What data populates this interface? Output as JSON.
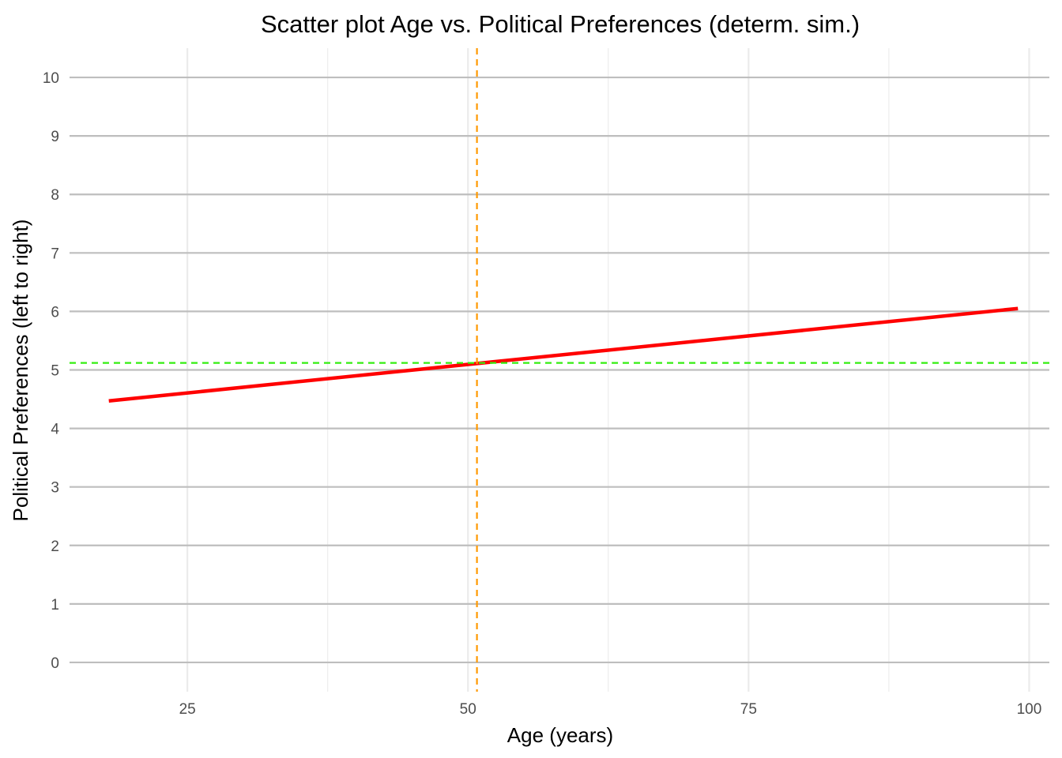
{
  "chart_data": {
    "type": "scatter",
    "title": "Scatter plot Age vs. Political Preferences (determ. sim.)",
    "xlabel": "Age (years)",
    "ylabel": "Political Preferences (left to right)",
    "xlim": [
      14.5,
      101.8
    ],
    "ylim": [
      -0.5,
      10.5
    ],
    "x_ticks": [
      25,
      50,
      75,
      100
    ],
    "x_minor_ticks": [
      37.5,
      62.5,
      87.5
    ],
    "y_ticks": [
      0,
      1,
      2,
      3,
      4,
      5,
      6,
      7,
      8,
      9,
      10
    ],
    "x_tick_labels": [
      "25",
      "50",
      "75",
      "100"
    ],
    "y_tick_labels": [
      "0",
      "1",
      "2",
      "3",
      "4",
      "5",
      "6",
      "7",
      "8",
      "9",
      "10"
    ],
    "grid": true,
    "series": [
      {
        "kind": "regression-line",
        "color": "#ff0000",
        "x": [
          18,
          99
        ],
        "y": [
          4.47,
          6.05
        ]
      },
      {
        "kind": "mean-line-horizontal",
        "color": "#33ee11",
        "y": 5.12
      },
      {
        "kind": "mean-line-vertical",
        "color": "#ff9900",
        "x": 50.8
      }
    ]
  }
}
